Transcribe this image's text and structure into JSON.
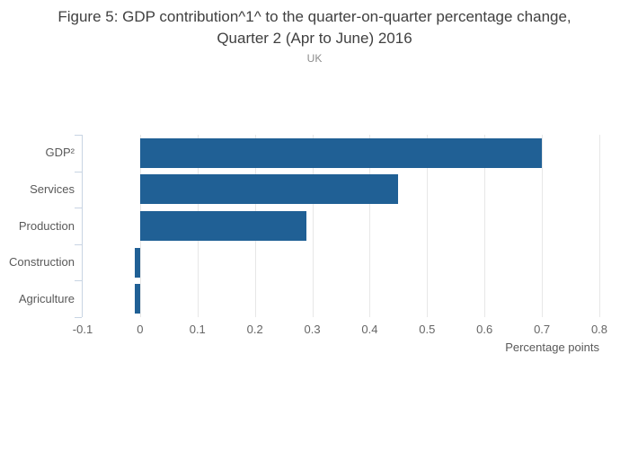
{
  "chart_data": {
    "type": "bar",
    "orientation": "horizontal",
    "title": "Figure 5: GDP contribution^1^ to the quarter-on-quarter percentage change, Quarter 2 (Apr to June) 2016",
    "subtitle": "UK",
    "categories": [
      "GDP²",
      "Services",
      "Production",
      "Construction",
      "Agriculture"
    ],
    "values": [
      0.7,
      0.45,
      0.29,
      -0.01,
      -0.01
    ],
    "xlabel": "Percentage points",
    "xlim": [
      -0.1,
      0.8
    ],
    "xticks": {
      "values": [
        -0.1,
        0,
        0.1,
        0.2,
        0.3,
        0.4,
        0.5,
        0.6,
        0.7,
        0.8
      ],
      "labels": [
        "-0.1",
        "0",
        "0.1",
        "0.2",
        "0.3",
        "0.4",
        "0.5",
        "0.6",
        "0.7",
        "0.8"
      ]
    },
    "grid": true,
    "legend": "none",
    "colors": {
      "bar": "#206095",
      "axis_line": "#c8d4e3",
      "gridline": "#e7e7e7",
      "title_text": "#404040",
      "subtitle_text": "#8c8c8c",
      "label_text": "#595959"
    }
  }
}
